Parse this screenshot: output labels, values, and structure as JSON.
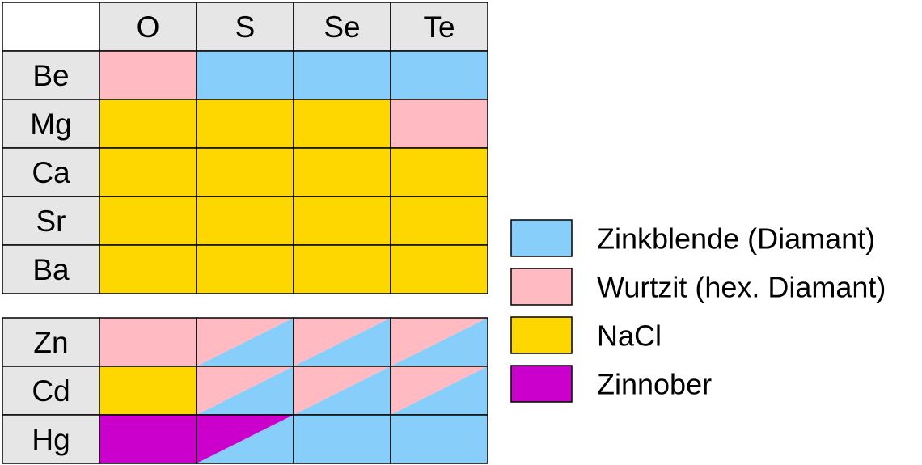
{
  "colors": {
    "zinkblende": "#87cefa",
    "wurtzit": "#ffbbc1",
    "nacl": "#ffd700",
    "zinnober": "#cc00cc",
    "header_bg": "#e6e6e6",
    "corner_bg": "#ffffff",
    "border": "#000000"
  },
  "columns": [
    "O",
    "S",
    "Se",
    "Te"
  ],
  "groups": [
    {
      "rows": [
        {
          "label": "Be",
          "cells": [
            "wurtzit",
            "zinkblende",
            "zinkblende",
            "zinkblende"
          ]
        },
        {
          "label": "Mg",
          "cells": [
            "nacl",
            "nacl",
            "nacl",
            "wurtzit"
          ]
        },
        {
          "label": "Ca",
          "cells": [
            "nacl",
            "nacl",
            "nacl",
            "nacl"
          ]
        },
        {
          "label": "Sr",
          "cells": [
            "nacl",
            "nacl",
            "nacl",
            "nacl"
          ]
        },
        {
          "label": "Ba",
          "cells": [
            "nacl",
            "nacl",
            "nacl",
            "nacl"
          ]
        }
      ]
    },
    {
      "rows": [
        {
          "label": "Zn",
          "cells": [
            "wurtzit",
            "wurtzit/zinkblende",
            "wurtzit/zinkblende",
            "wurtzit/zinkblende"
          ]
        },
        {
          "label": "Cd",
          "cells": [
            "nacl",
            "wurtzit/zinkblende",
            "wurtzit/zinkblende",
            "wurtzit/zinkblende"
          ]
        },
        {
          "label": "Hg",
          "cells": [
            "zinnober",
            "zinnober/zinkblende",
            "zinkblende",
            "zinkblende"
          ]
        }
      ]
    }
  ],
  "legend": [
    {
      "key": "zinkblende",
      "label": "Zinkblende (Diamant)"
    },
    {
      "key": "wurtzit",
      "label": "Wurtzit (hex. Diamant)"
    },
    {
      "key": "nacl",
      "label": "NaCl"
    },
    {
      "key": "zinnober",
      "label": "Zinnober"
    }
  ]
}
